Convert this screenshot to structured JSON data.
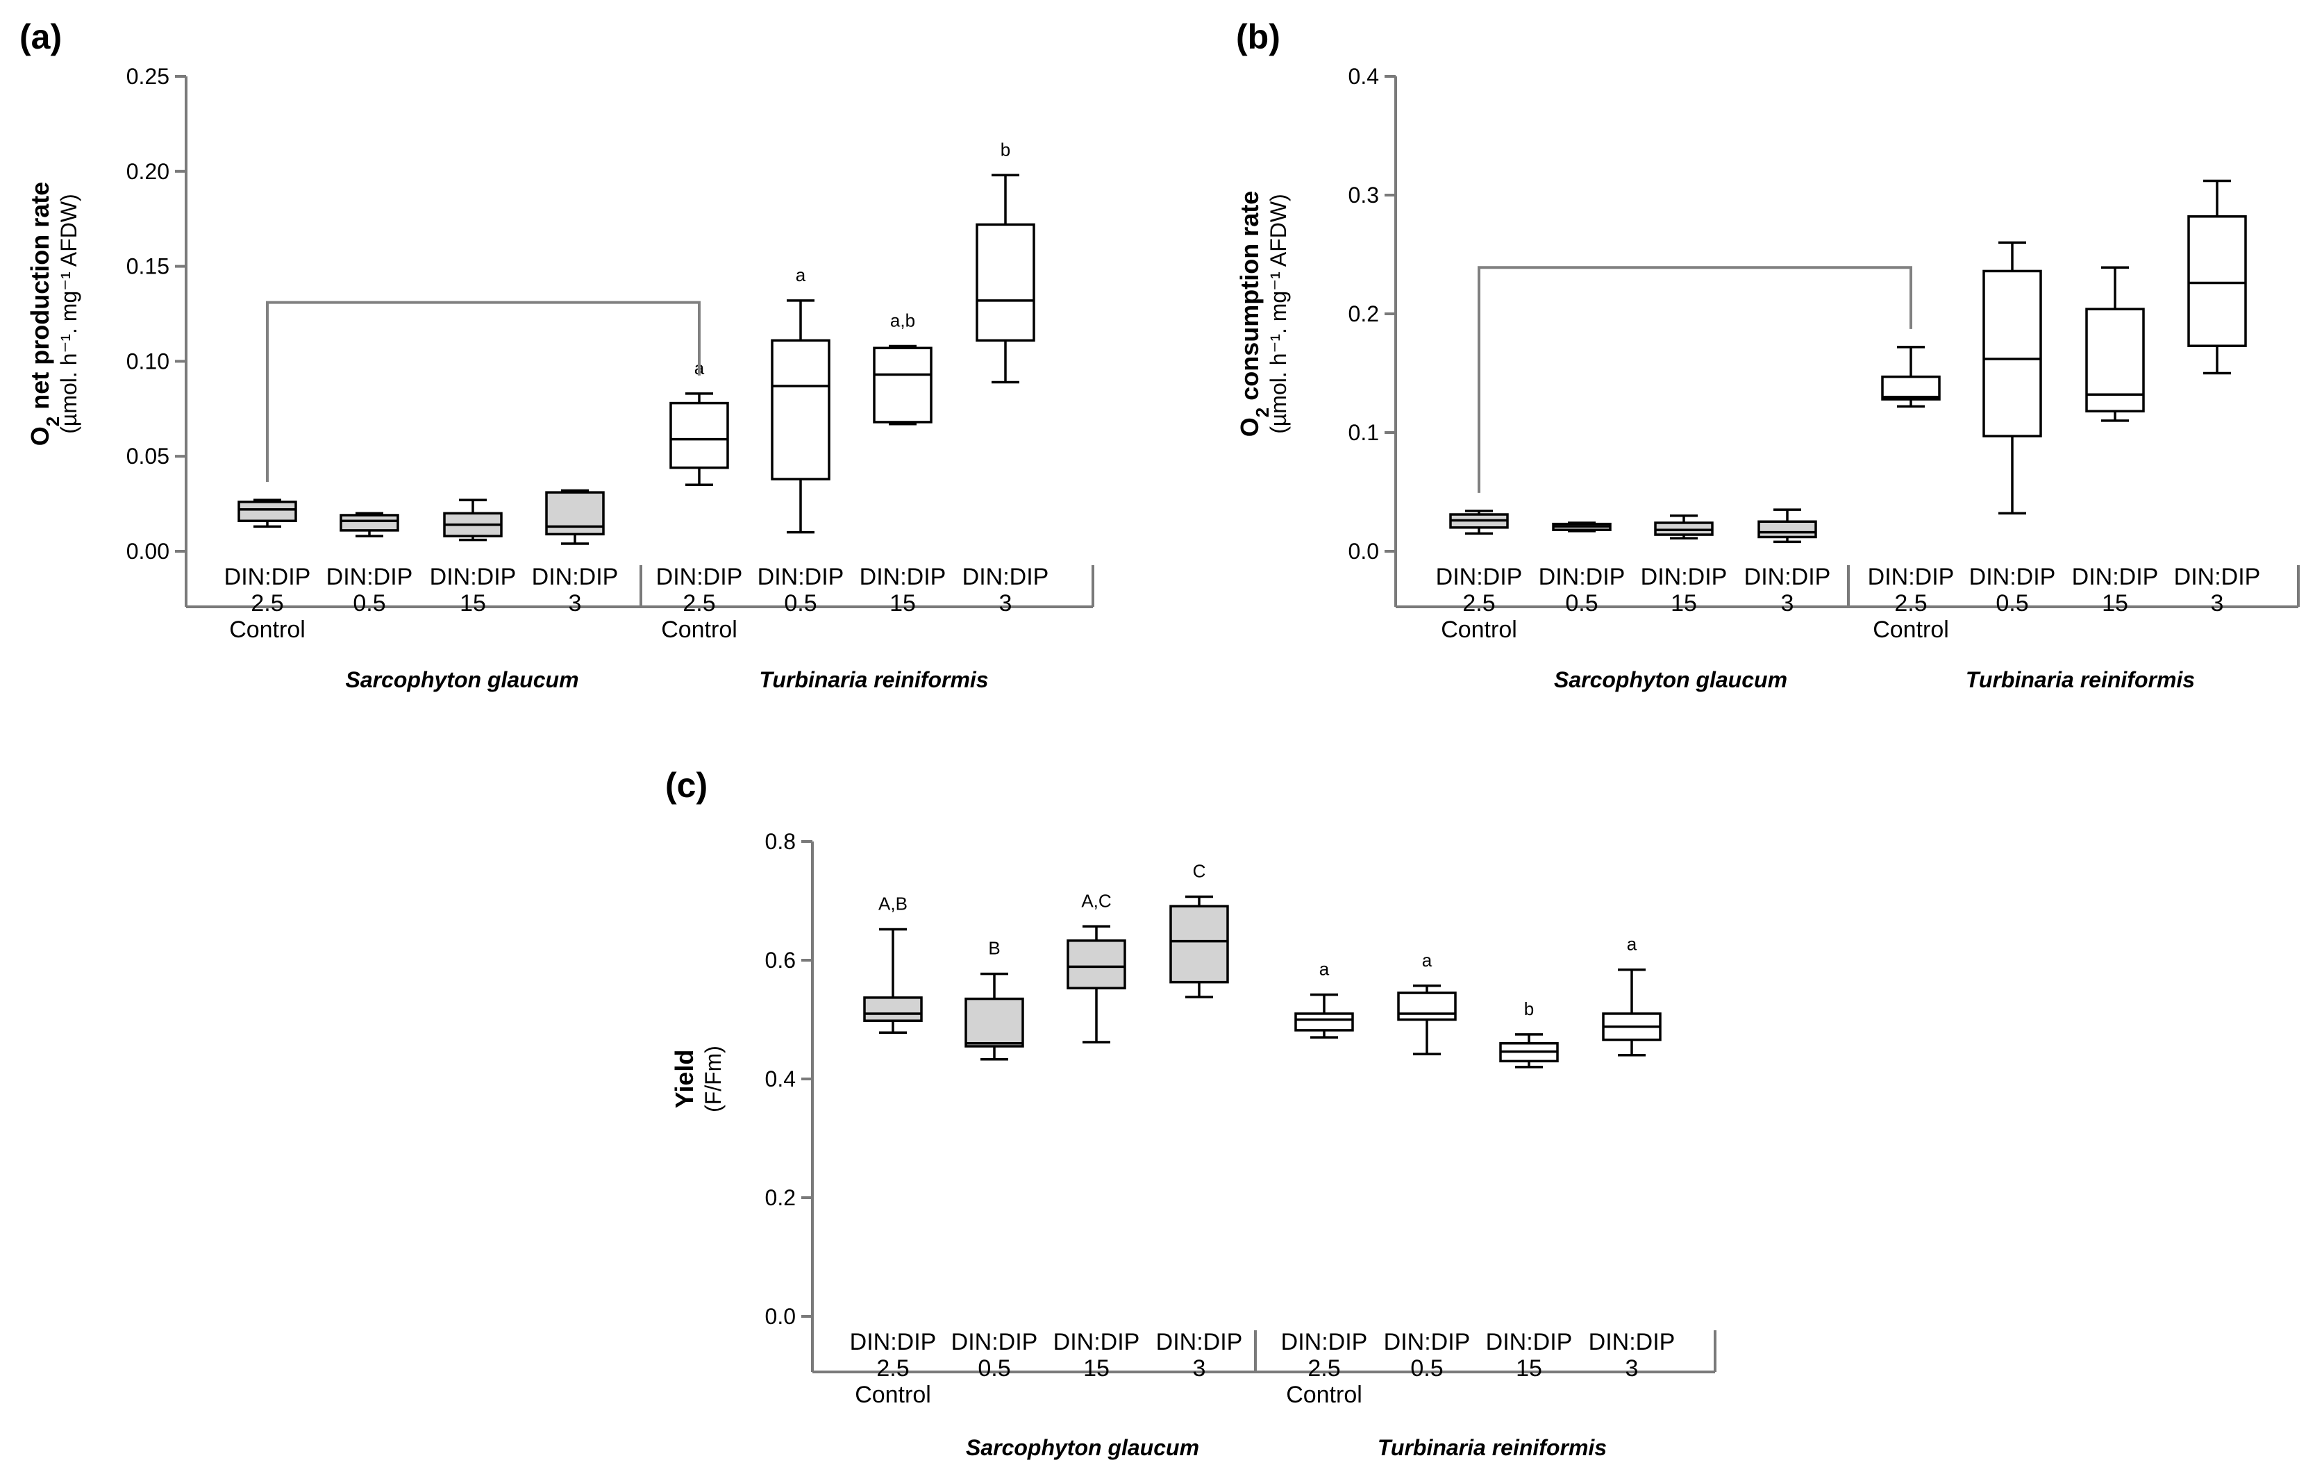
{
  "colors": {
    "shaded": "#d3d3d3",
    "open": "#ffffff",
    "axis": "#7a7a7a",
    "bracket": "#808080"
  },
  "chart_data": [
    {
      "panel": "(a)",
      "type": "box",
      "ylabel_main": "net production rate",
      "ylabel_sub": "(µmol. h⁻¹. mg⁻¹ AFDW)",
      "ylabel_species": "O",
      "ylabel_subscript": "2",
      "ylim": [
        0,
        0.25
      ],
      "yticks": [
        "0.00",
        "0.05",
        "0.10",
        "0.15",
        "0.20",
        "0.25"
      ],
      "ytick_values": [
        0,
        0.05,
        0.1,
        0.15,
        0.2,
        0.25
      ],
      "groups": [
        "Sarcophyton glaucum",
        "Turbinaria reiniformis"
      ],
      "categories": [
        {
          "line1": "DIN:DIP",
          "line2": "2.5",
          "line3": "Control"
        },
        {
          "line1": "DIN:DIP",
          "line2": "0.5",
          "line3": ""
        },
        {
          "line1": "DIN:DIP",
          "line2": "15",
          "line3": ""
        },
        {
          "line1": "DIN:DIP",
          "line2": "3",
          "line3": ""
        },
        {
          "line1": "DIN:DIP",
          "line2": "2.5",
          "line3": "Control"
        },
        {
          "line1": "DIN:DIP",
          "line2": "0.5",
          "line3": ""
        },
        {
          "line1": "DIN:DIP",
          "line2": "15",
          "line3": ""
        },
        {
          "line1": "DIN:DIP",
          "line2": "3",
          "line3": ""
        }
      ],
      "boxes": [
        {
          "min": 0.013,
          "q1": 0.016,
          "median": 0.022,
          "q3": 0.026,
          "max": 0.027,
          "shaded": true,
          "annotation": ""
        },
        {
          "min": 0.008,
          "q1": 0.011,
          "median": 0.016,
          "q3": 0.019,
          "max": 0.02,
          "shaded": true,
          "annotation": ""
        },
        {
          "min": 0.006,
          "q1": 0.008,
          "median": 0.014,
          "q3": 0.02,
          "max": 0.027,
          "shaded": true,
          "annotation": ""
        },
        {
          "min": 0.004,
          "q1": 0.009,
          "median": 0.013,
          "q3": 0.031,
          "max": 0.032,
          "shaded": true,
          "annotation": ""
        },
        {
          "min": 0.035,
          "q1": 0.044,
          "median": 0.059,
          "q3": 0.078,
          "max": 0.083,
          "shaded": false,
          "annotation": "a"
        },
        {
          "min": 0.01,
          "q1": 0.038,
          "median": 0.087,
          "q3": 0.111,
          "max": 0.132,
          "shaded": false,
          "annotation": "a"
        },
        {
          "min": 0.067,
          "q1": 0.068,
          "median": 0.093,
          "q3": 0.107,
          "max": 0.108,
          "shaded": false,
          "annotation": "a,b"
        },
        {
          "min": 0.089,
          "q1": 0.111,
          "median": 0.132,
          "q3": 0.172,
          "max": 0.198,
          "shaded": false,
          "annotation": "b"
        }
      ],
      "bracket": {
        "from": 0,
        "to": 4
      }
    },
    {
      "panel": "(b)",
      "type": "box",
      "ylabel_main": "consumption rate",
      "ylabel_sub": "(µmol. h⁻¹. mg⁻¹ AFDW)",
      "ylabel_species": "O",
      "ylabel_subscript": "2",
      "ylim": [
        0,
        0.4
      ],
      "yticks": [
        "0.0",
        "0.1",
        "0.2",
        "0.3",
        "0.4"
      ],
      "ytick_values": [
        0,
        0.1,
        0.2,
        0.3,
        0.4
      ],
      "groups": [
        "Sarcophyton glaucum",
        "Turbinaria reiniformis"
      ],
      "categories": [
        {
          "line1": "DIN:DIP",
          "line2": "2.5",
          "line3": "Control"
        },
        {
          "line1": "DIN:DIP",
          "line2": "0.5",
          "line3": ""
        },
        {
          "line1": "DIN:DIP",
          "line2": "15",
          "line3": ""
        },
        {
          "line1": "DIN:DIP",
          "line2": "3",
          "line3": ""
        },
        {
          "line1": "DIN:DIP",
          "line2": "2.5",
          "line3": "Control"
        },
        {
          "line1": "DIN:DIP",
          "line2": "0.5",
          "line3": ""
        },
        {
          "line1": "DIN:DIP",
          "line2": "15",
          "line3": ""
        },
        {
          "line1": "DIN:DIP",
          "line2": "3",
          "line3": ""
        }
      ],
      "boxes": [
        {
          "min": 0.015,
          "q1": 0.02,
          "median": 0.026,
          "q3": 0.031,
          "max": 0.034,
          "shaded": true,
          "annotation": ""
        },
        {
          "min": 0.017,
          "q1": 0.018,
          "median": 0.021,
          "q3": 0.023,
          "max": 0.024,
          "shaded": true,
          "annotation": ""
        },
        {
          "min": 0.011,
          "q1": 0.014,
          "median": 0.018,
          "q3": 0.024,
          "max": 0.03,
          "shaded": true,
          "annotation": ""
        },
        {
          "min": 0.008,
          "q1": 0.012,
          "median": 0.016,
          "q3": 0.025,
          "max": 0.035,
          "shaded": true,
          "annotation": ""
        },
        {
          "min": 0.122,
          "q1": 0.128,
          "median": 0.13,
          "q3": 0.147,
          "max": 0.172,
          "shaded": false,
          "annotation": ""
        },
        {
          "min": 0.032,
          "q1": 0.097,
          "median": 0.162,
          "q3": 0.236,
          "max": 0.26,
          "shaded": false,
          "annotation": ""
        },
        {
          "min": 0.11,
          "q1": 0.118,
          "median": 0.132,
          "q3": 0.204,
          "max": 0.239,
          "shaded": false,
          "annotation": ""
        },
        {
          "min": 0.15,
          "q1": 0.173,
          "median": 0.226,
          "q3": 0.282,
          "max": 0.312,
          "shaded": false,
          "annotation": ""
        }
      ],
      "bracket": {
        "from": 0,
        "to": 4
      }
    },
    {
      "panel": "(c)",
      "type": "box",
      "ylabel_main": "Yield",
      "ylabel_sub": "(F/Fm)",
      "ylim": [
        0,
        0.8
      ],
      "yticks": [
        "0.0",
        "0.2",
        "0.4",
        "0.6",
        "0.8"
      ],
      "ytick_values": [
        0,
        0.2,
        0.4,
        0.6,
        0.8
      ],
      "groups": [
        "Sarcophyton glaucum",
        "Turbinaria reiniformis"
      ],
      "categories": [
        {
          "line1": "DIN:DIP",
          "line2": "2.5",
          "line3": "Control"
        },
        {
          "line1": "DIN:DIP",
          "line2": "0.5",
          "line3": ""
        },
        {
          "line1": "DIN:DIP",
          "line2": "15",
          "line3": ""
        },
        {
          "line1": "DIN:DIP",
          "line2": "3",
          "line3": ""
        },
        {
          "line1": "DIN:DIP",
          "line2": "2.5",
          "line3": "Control"
        },
        {
          "line1": "DIN:DIP",
          "line2": "0.5",
          "line3": ""
        },
        {
          "line1": "DIN:DIP",
          "line2": "15",
          "line3": ""
        },
        {
          "line1": "DIN:DIP",
          "line2": "3",
          "line3": ""
        }
      ],
      "boxes": [
        {
          "min": 0.478,
          "q1": 0.498,
          "median": 0.51,
          "q3": 0.537,
          "max": 0.652,
          "shaded": true,
          "annotation": "A,B"
        },
        {
          "min": 0.433,
          "q1": 0.455,
          "median": 0.46,
          "q3": 0.535,
          "max": 0.577,
          "shaded": true,
          "annotation": "B"
        },
        {
          "min": 0.462,
          "q1": 0.553,
          "median": 0.589,
          "q3": 0.633,
          "max": 0.657,
          "shaded": true,
          "annotation": "A,C"
        },
        {
          "min": 0.538,
          "q1": 0.563,
          "median": 0.632,
          "q3": 0.691,
          "max": 0.707,
          "shaded": true,
          "annotation": "C"
        },
        {
          "min": 0.47,
          "q1": 0.482,
          "median": 0.5,
          "q3": 0.51,
          "max": 0.542,
          "shaded": false,
          "annotation": "a"
        },
        {
          "min": 0.442,
          "q1": 0.5,
          "median": 0.51,
          "q3": 0.545,
          "max": 0.557,
          "shaded": false,
          "annotation": "a"
        },
        {
          "min": 0.42,
          "q1": 0.43,
          "median": 0.446,
          "q3": 0.46,
          "max": 0.475,
          "shaded": false,
          "annotation": "b"
        },
        {
          "min": 0.44,
          "q1": 0.466,
          "median": 0.488,
          "q3": 0.51,
          "max": 0.584,
          "shaded": false,
          "annotation": "a"
        }
      ]
    }
  ]
}
